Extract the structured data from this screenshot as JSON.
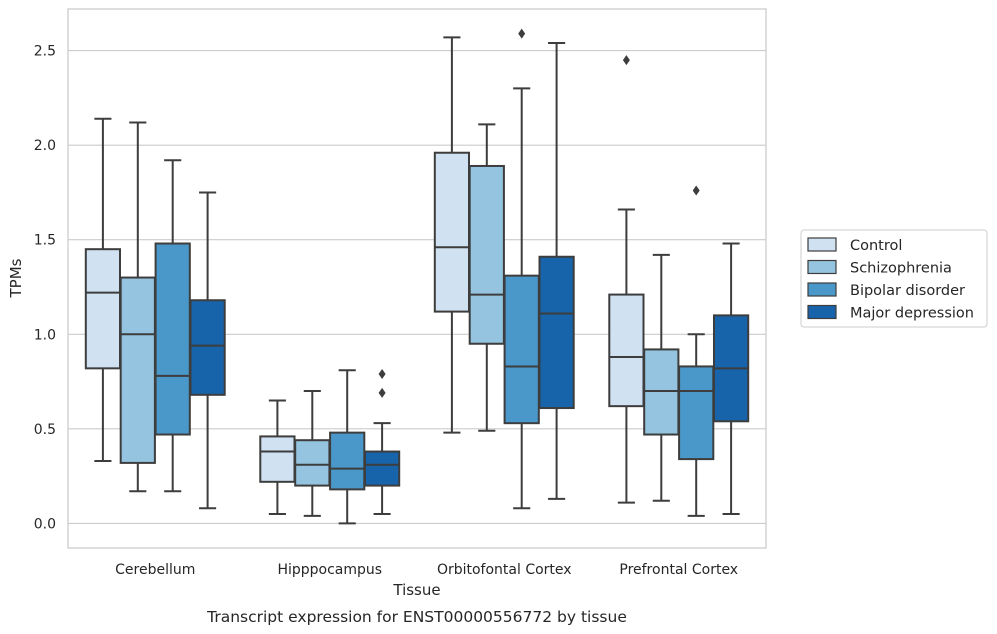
{
  "chart_data": {
    "type": "box",
    "caption": "Transcript expression for ENST00000556772 by tissue",
    "xlabel": "Tissue",
    "ylabel": "TPMs",
    "ylim": [
      -0.13,
      2.72
    ],
    "yticks": [
      0.0,
      0.5,
      1.0,
      1.5,
      2.0,
      2.5
    ],
    "ytick_labels": [
      "0.0",
      "0.5",
      "1.0",
      "1.5",
      "2.0",
      "2.5"
    ],
    "grid": "horizontal",
    "legend_position": "right",
    "categories": [
      "Cerebellum",
      "Hipppocampus",
      "Orbitofontal Cortex",
      "Prefrontal Cortex"
    ],
    "series": [
      {
        "name": "Control",
        "color": "#d0e1f2",
        "boxes": [
          {
            "whislo": 0.33,
            "q1": 0.82,
            "med": 1.22,
            "q3": 1.45,
            "whishi": 2.14,
            "fliers": []
          },
          {
            "whislo": 0.05,
            "q1": 0.22,
            "med": 0.38,
            "q3": 0.46,
            "whishi": 0.65,
            "fliers": []
          },
          {
            "whislo": 0.48,
            "q1": 1.12,
            "med": 1.46,
            "q3": 1.96,
            "whishi": 2.57,
            "fliers": []
          },
          {
            "whislo": 0.11,
            "q1": 0.62,
            "med": 0.88,
            "q3": 1.21,
            "whishi": 1.66,
            "fliers": [
              2.45
            ]
          }
        ]
      },
      {
        "name": "Schizophrenia",
        "color": "#94c4df",
        "boxes": [
          {
            "whislo": 0.17,
            "q1": 0.32,
            "med": 1.0,
            "q3": 1.3,
            "whishi": 2.12,
            "fliers": []
          },
          {
            "whislo": 0.04,
            "q1": 0.2,
            "med": 0.31,
            "q3": 0.44,
            "whishi": 0.7,
            "fliers": []
          },
          {
            "whislo": 0.49,
            "q1": 0.95,
            "med": 1.21,
            "q3": 1.89,
            "whishi": 2.11,
            "fliers": []
          },
          {
            "whislo": 0.12,
            "q1": 0.47,
            "med": 0.7,
            "q3": 0.92,
            "whishi": 1.42,
            "fliers": []
          }
        ]
      },
      {
        "name": "Bipolar disorder",
        "color": "#4a98c9",
        "boxes": [
          {
            "whislo": 0.17,
            "q1": 0.47,
            "med": 0.78,
            "q3": 1.48,
            "whishi": 1.92,
            "fliers": []
          },
          {
            "whislo": 0.0,
            "q1": 0.18,
            "med": 0.29,
            "q3": 0.48,
            "whishi": 0.81,
            "fliers": []
          },
          {
            "whislo": 0.08,
            "q1": 0.53,
            "med": 0.83,
            "q3": 1.31,
            "whishi": 2.3,
            "fliers": [
              2.59
            ]
          },
          {
            "whislo": 0.04,
            "q1": 0.34,
            "med": 0.7,
            "q3": 0.83,
            "whishi": 1.0,
            "fliers": [
              1.76
            ]
          }
        ]
      },
      {
        "name": "Major depression",
        "color": "#1764ab",
        "boxes": [
          {
            "whislo": 0.08,
            "q1": 0.68,
            "med": 0.94,
            "q3": 1.18,
            "whishi": 1.75,
            "fliers": []
          },
          {
            "whislo": 0.05,
            "q1": 0.2,
            "med": 0.31,
            "q3": 0.38,
            "whishi": 0.53,
            "fliers": [
              0.69,
              0.79
            ]
          },
          {
            "whislo": 0.13,
            "q1": 0.61,
            "med": 1.11,
            "q3": 1.41,
            "whishi": 2.54,
            "fliers": []
          },
          {
            "whislo": 0.05,
            "q1": 0.54,
            "med": 0.82,
            "q3": 1.1,
            "whishi": 1.48,
            "fliers": []
          }
        ]
      }
    ]
  }
}
